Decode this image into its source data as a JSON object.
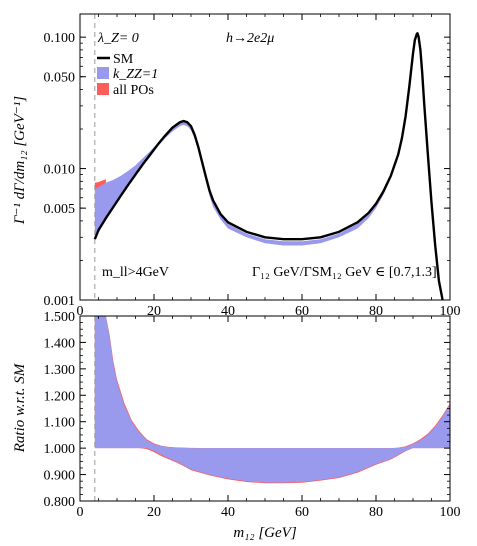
{
  "chart_data": [
    {
      "type": "line",
      "yscale": "log",
      "xlim": [
        0,
        100
      ],
      "ylim": [
        0.001,
        0.15
      ],
      "ylabel": "Γ⁻¹ dΓ/dm₁₂  [GeV⁻¹]",
      "x_ticks": [
        "0",
        "20",
        "40",
        "60",
        "80",
        "100"
      ],
      "y_ticks": [
        {
          "value": 0.001,
          "label": "0.001"
        },
        {
          "value": 0.005,
          "label": "0.005"
        },
        {
          "value": 0.01,
          "label": "0.010"
        },
        {
          "value": 0.05,
          "label": "0.050"
        },
        {
          "value": 0.1,
          "label": "0.100"
        }
      ],
      "annotations": {
        "lambda": "λ_Z= 0",
        "process": "h→2e2μ",
        "mll_cut": "m_ll>4GeV",
        "gamma_ratio": "Γ₁₂ GeV/ΓSM₁₂ GeV ∈ [0.7,1.3]"
      },
      "vline_x": 4,
      "legend": {
        "position": "top-left",
        "entries": [
          {
            "label": "SM",
            "color": "#000000",
            "kind": "line"
          },
          {
            "label": "k_ZZ=1",
            "color": "#9999ee",
            "kind": "box"
          },
          {
            "label": "all POs",
            "color": "#ff5c5c",
            "kind": "box"
          }
        ]
      },
      "series": [
        {
          "name": "SM",
          "color": "#000000",
          "x": [
            4,
            5,
            7,
            9,
            11,
            13,
            15,
            17,
            19,
            21,
            23,
            25,
            27,
            28,
            29,
            30,
            31,
            32,
            33,
            34,
            35,
            36,
            38,
            40,
            45,
            50,
            55,
            60,
            65,
            70,
            75,
            78,
            80,
            82,
            84,
            86,
            87,
            88,
            89,
            90,
            90.5,
            91,
            91.2,
            91.5,
            92,
            92.5,
            93,
            94,
            95,
            96,
            97,
            98
          ],
          "y": [
            0.0029,
            0.0034,
            0.0042,
            0.0051,
            0.0062,
            0.0075,
            0.009,
            0.0108,
            0.0128,
            0.0152,
            0.0178,
            0.0205,
            0.0225,
            0.023,
            0.0225,
            0.021,
            0.018,
            0.0145,
            0.0112,
            0.0087,
            0.0068,
            0.0057,
            0.0045,
            0.0039,
            0.0033,
            0.003,
            0.0029,
            0.0029,
            0.003,
            0.0033,
            0.0039,
            0.0046,
            0.0054,
            0.0067,
            0.0088,
            0.0128,
            0.017,
            0.025,
            0.042,
            0.075,
            0.095,
            0.105,
            0.107,
            0.101,
            0.08,
            0.053,
            0.032,
            0.013,
            0.0055,
            0.0026,
            0.0014,
            0.001
          ]
        },
        {
          "name": "k_ZZ=1",
          "color": "#9999ee",
          "x": [
            4,
            5,
            7,
            9,
            11,
            13,
            15,
            17,
            19,
            21,
            23,
            25,
            27,
            28,
            29,
            30,
            31,
            32,
            33,
            34,
            35,
            36,
            38,
            40,
            45,
            50,
            55,
            60,
            65,
            70,
            75,
            78,
            80,
            82,
            84,
            86,
            87,
            88,
            89,
            90,
            90.5,
            91,
            91.2,
            91.5,
            92,
            92.5,
            93,
            94,
            95,
            96,
            97,
            98
          ],
          "upper": [
            0.0072,
            0.0074,
            0.0078,
            0.0082,
            0.0088,
            0.0096,
            0.0106,
            0.012,
            0.0136,
            0.0156,
            0.0178,
            0.0203,
            0.0223,
            0.0228,
            0.0223,
            0.0208,
            0.0179,
            0.0144,
            0.0111,
            0.0086,
            0.0067,
            0.0056,
            0.0044,
            0.0038,
            0.0032,
            0.0029,
            0.0028,
            0.0028,
            0.0029,
            0.0032,
            0.0038,
            0.0045,
            0.0053,
            0.0066,
            0.0087,
            0.0127,
            0.0169,
            0.0249,
            0.0419,
            0.0749,
            0.0949,
            0.1049,
            0.1069,
            0.1009,
            0.0799,
            0.0529,
            0.0319,
            0.013,
            0.0055,
            0.0026,
            0.0014,
            0.001
          ],
          "lower": [
            0.0029,
            0.0034,
            0.0042,
            0.0051,
            0.0062,
            0.0075,
            0.009,
            0.0107,
            0.0125,
            0.0147,
            0.017,
            0.0192,
            0.021,
            0.0215,
            0.021,
            0.0196,
            0.0168,
            0.0135,
            0.0104,
            0.008,
            0.0062,
            0.0051,
            0.0041,
            0.0035,
            0.003,
            0.0027,
            0.0026,
            0.0026,
            0.0027,
            0.003,
            0.0035,
            0.0042,
            0.005,
            0.0063,
            0.0085,
            0.0125,
            0.0167,
            0.0247,
            0.0416,
            0.0745,
            0.0945,
            0.1045,
            0.1065,
            0.1005,
            0.0796,
            0.0527,
            0.0318,
            0.013,
            0.0055,
            0.0026,
            0.0014,
            0.001
          ]
        },
        {
          "name": "all POs",
          "color": "#ff5c5c",
          "x": [
            4,
            5,
            6,
            7
          ],
          "upper": [
            0.0078,
            0.0079,
            0.0081,
            0.0083
          ],
          "lower": [
            0.007,
            0.0072,
            0.0075,
            0.0078
          ]
        }
      ]
    },
    {
      "type": "area",
      "xlim": [
        0,
        100
      ],
      "ylim": [
        0.8,
        1.5
      ],
      "xlabel": "m₁₂ [GeV]",
      "ylabel": "Ratio w.r.t. SM",
      "x_ticks": [
        "0",
        "20",
        "40",
        "60",
        "80",
        "100"
      ],
      "y_ticks": [
        {
          "value": 0.8,
          "label": "0.800"
        },
        {
          "value": 0.9,
          "label": "0.900"
        },
        {
          "value": 1.0,
          "label": "1.000"
        },
        {
          "value": 1.1,
          "label": "1.100"
        },
        {
          "value": 1.2,
          "label": "1.200"
        },
        {
          "value": 1.3,
          "label": "1.300"
        },
        {
          "value": 1.4,
          "label": "1.400"
        },
        {
          "value": 1.5,
          "label": "1.500"
        }
      ],
      "vline_x": 4,
      "series": [
        {
          "name": "k_ZZ=1",
          "color": "#9999ee",
          "x": [
            4,
            5,
            6,
            7,
            8,
            9,
            10,
            12,
            14,
            16,
            18,
            20,
            22,
            24,
            26,
            28,
            30,
            35,
            40,
            45,
            50,
            55,
            60,
            65,
            70,
            75,
            80,
            84,
            86,
            88,
            90,
            92,
            94,
            96,
            98,
            100
          ],
          "upper": [
            1.5,
            1.5,
            1.5,
            1.5,
            1.42,
            1.32,
            1.25,
            1.16,
            1.1,
            1.06,
            1.03,
            1.015,
            1.008,
            1.004,
            1.002,
            1.001,
            1.0,
            1.0,
            1.0,
            1.0,
            1.0,
            1.0,
            1.0,
            1.0,
            1.0,
            1.0,
            1.0,
            1.0,
            1.001,
            1.005,
            1.015,
            1.03,
            1.05,
            1.08,
            1.12,
            1.165
          ],
          "lower": [
            1.0,
            1.0,
            1.0,
            1.0,
            1.0,
            1.0,
            1.0,
            1.0,
            1.0,
            1.0,
            1.0,
            0.99,
            0.975,
            0.962,
            0.95,
            0.935,
            0.92,
            0.9,
            0.885,
            0.875,
            0.87,
            0.87,
            0.872,
            0.88,
            0.89,
            0.91,
            0.94,
            0.96,
            0.975,
            0.99,
            1.0,
            1.0,
            1.0,
            1.0,
            1.0,
            1.0
          ]
        },
        {
          "name": "all POs",
          "color": "#ff5c5c",
          "x": [
            4,
            5,
            6,
            7,
            8,
            9,
            10,
            12,
            14,
            16,
            18,
            20,
            22,
            24,
            26,
            28,
            30,
            35,
            40,
            45,
            50,
            55,
            60,
            65,
            70,
            75,
            80,
            84,
            86,
            88,
            90,
            92,
            94,
            96,
            98,
            100
          ],
          "upper": [
            1.5,
            1.5,
            1.5,
            1.5,
            1.43,
            1.33,
            1.26,
            1.17,
            1.105,
            1.065,
            1.034,
            1.018,
            1.009,
            1.005,
            1.003,
            1.002,
            1.001,
            1.0,
            1.0,
            1.0,
            1.0,
            1.0,
            1.0,
            1.0,
            1.0,
            1.0,
            1.0,
            1.0,
            1.002,
            1.007,
            1.018,
            1.034,
            1.055,
            1.085,
            1.125,
            1.17
          ],
          "lower": [
            1.0,
            1.0,
            1.0,
            1.0,
            1.0,
            1.0,
            1.0,
            1.0,
            1.0,
            1.0,
            0.997,
            0.985,
            0.97,
            0.958,
            0.946,
            0.932,
            0.917,
            0.897,
            0.882,
            0.872,
            0.867,
            0.867,
            0.869,
            0.877,
            0.887,
            0.907,
            0.937,
            0.957,
            0.972,
            0.988,
            1.0,
            1.0,
            1.0,
            1.0,
            1.0,
            1.0
          ]
        }
      ]
    }
  ]
}
